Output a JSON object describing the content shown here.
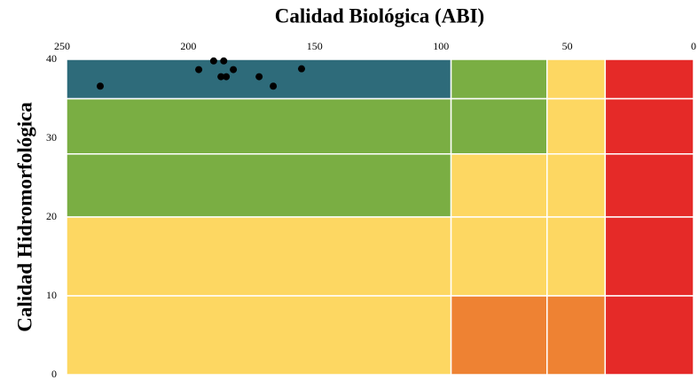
{
  "chart_data": {
    "type": "scatter",
    "title": "Calidad Biológica (ABI)",
    "y_label": "Calidad Hidromorfológica",
    "xlim": [
      250,
      0
    ],
    "xticks": [
      250,
      200,
      150,
      100,
      50,
      0
    ],
    "ylim": [
      0,
      40
    ],
    "yticks": [
      0,
      10,
      20,
      30,
      40
    ],
    "point_color": "#000000",
    "zones": [
      {
        "x": [
          250,
          96
        ],
        "y": [
          35,
          40
        ],
        "color": "#2e6b7a"
      },
      {
        "x": [
          96,
          58
        ],
        "y": [
          35,
          40
        ],
        "color": "#7aae43"
      },
      {
        "x": [
          58,
          35
        ],
        "y": [
          35,
          40
        ],
        "color": "#fdd762"
      },
      {
        "x": [
          35,
          0
        ],
        "y": [
          35,
          40
        ],
        "color": "#e52a28"
      },
      {
        "x": [
          250,
          96
        ],
        "y": [
          28,
          35
        ],
        "color": "#7aae43"
      },
      {
        "x": [
          96,
          58
        ],
        "y": [
          28,
          35
        ],
        "color": "#7aae43"
      },
      {
        "x": [
          58,
          35
        ],
        "y": [
          28,
          35
        ],
        "color": "#fdd762"
      },
      {
        "x": [
          35,
          0
        ],
        "y": [
          28,
          35
        ],
        "color": "#e52a28"
      },
      {
        "x": [
          250,
          96
        ],
        "y": [
          20,
          28
        ],
        "color": "#7aae43"
      },
      {
        "x": [
          96,
          58
        ],
        "y": [
          20,
          28
        ],
        "color": "#fdd762"
      },
      {
        "x": [
          58,
          35
        ],
        "y": [
          20,
          28
        ],
        "color": "#fdd762"
      },
      {
        "x": [
          35,
          0
        ],
        "y": [
          20,
          28
        ],
        "color": "#e52a28"
      },
      {
        "x": [
          250,
          96
        ],
        "y": [
          10,
          20
        ],
        "color": "#fdd762"
      },
      {
        "x": [
          96,
          58
        ],
        "y": [
          10,
          20
        ],
        "color": "#fdd762"
      },
      {
        "x": [
          58,
          35
        ],
        "y": [
          10,
          20
        ],
        "color": "#fdd762"
      },
      {
        "x": [
          35,
          0
        ],
        "y": [
          10,
          20
        ],
        "color": "#e52a28"
      },
      {
        "x": [
          250,
          96
        ],
        "y": [
          0,
          10
        ],
        "color": "#fdd762"
      },
      {
        "x": [
          96,
          58
        ],
        "y": [
          0,
          10
        ],
        "color": "#ee8233"
      },
      {
        "x": [
          58,
          35
        ],
        "y": [
          0,
          10
        ],
        "color": "#ee8233"
      },
      {
        "x": [
          35,
          0
        ],
        "y": [
          0,
          10
        ],
        "color": "#e52a28"
      }
    ],
    "x": [
      234.9,
      195.9,
      190,
      186,
      187.1,
      185,
      182.2,
      172,
      166.4,
      155.2
    ],
    "values": [
      36.6,
      38.7,
      39.8,
      39.8,
      37.8,
      37.8,
      38.7,
      37.8,
      36.6,
      38.8
    ]
  }
}
